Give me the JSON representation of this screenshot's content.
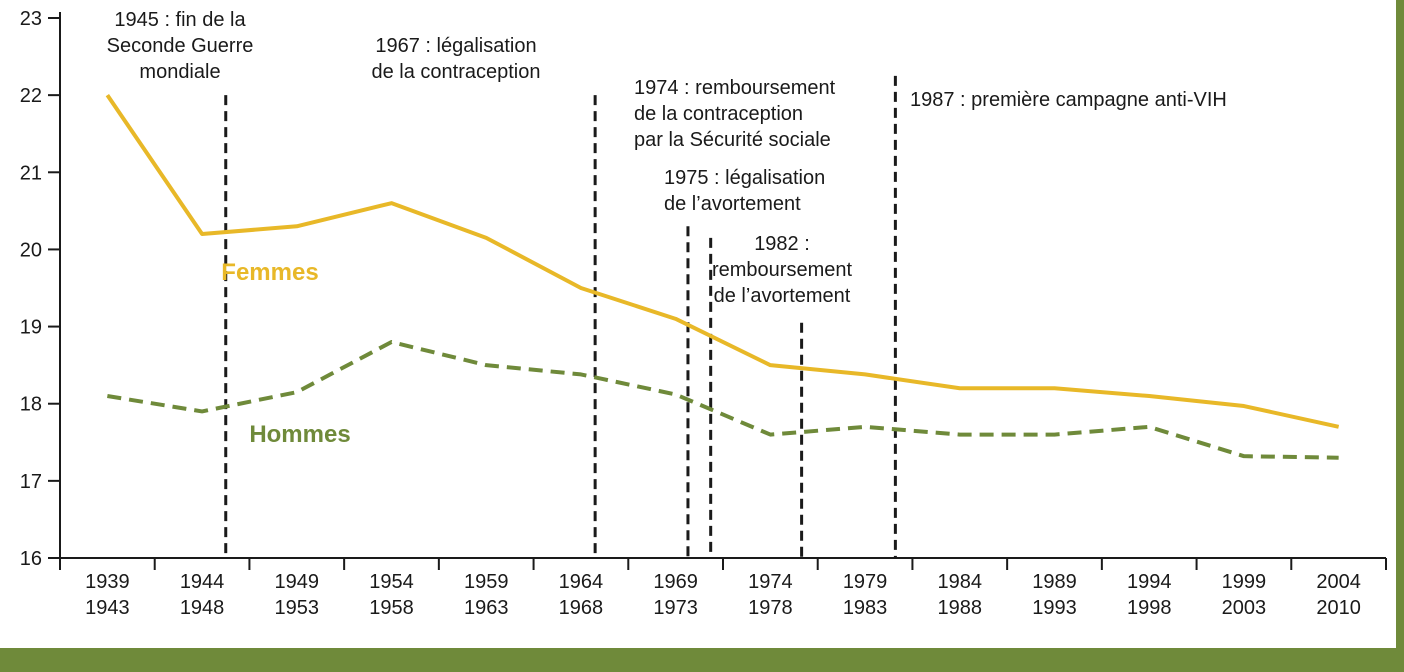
{
  "chart_data": {
    "type": "line",
    "title": "",
    "xlabel": "",
    "ylabel": "",
    "ylim": [
      16,
      23
    ],
    "y_ticks": [
      "16",
      "17",
      "18",
      "19",
      "20",
      "21",
      "22",
      "23"
    ],
    "categories": [
      [
        "1939",
        "1943"
      ],
      [
        "1944",
        "1948"
      ],
      [
        "1949",
        "1953"
      ],
      [
        "1954",
        "1958"
      ],
      [
        "1959",
        "1963"
      ],
      [
        "1964",
        "1968"
      ],
      [
        "1969",
        "1973"
      ],
      [
        "1974",
        "1978"
      ],
      [
        "1979",
        "1983"
      ],
      [
        "1984",
        "1988"
      ],
      [
        "1989",
        "1993"
      ],
      [
        "1994",
        "1998"
      ],
      [
        "1999",
        "2003"
      ],
      [
        "2004",
        "2010"
      ]
    ],
    "grid": false,
    "series": [
      {
        "name": "Femmes",
        "color": "#e8b828",
        "style": "solid",
        "values": [
          22.0,
          20.2,
          20.3,
          20.6,
          20.15,
          19.5,
          19.1,
          18.5,
          18.38,
          18.2,
          18.2,
          18.1,
          17.97,
          17.7
        ]
      },
      {
        "name": "Hommes",
        "color": "#6f8a3a",
        "style": "dashed",
        "values": [
          18.1,
          17.9,
          18.15,
          18.8,
          18.5,
          18.38,
          18.12,
          17.6,
          17.7,
          17.6,
          17.6,
          17.7,
          17.32,
          17.3
        ]
      }
    ],
    "events": [
      {
        "position": 1.75,
        "top_value": 22.0,
        "lines": [
          "1945 : fin de la",
          "Seconde Guerre",
          "mondiale"
        ]
      },
      {
        "position": 5.65,
        "top_value": 22.0,
        "lines": [
          "1967 : légalisation",
          "de la contraception"
        ]
      },
      {
        "position": 6.63,
        "top_value": 20.3,
        "lines": [
          "1974 : remboursement",
          "de la contraception",
          "par la Sécurité sociale"
        ]
      },
      {
        "position": 6.87,
        "top_value": 20.15,
        "lines": [
          "1975 : légalisation",
          "de l’avortement"
        ]
      },
      {
        "position": 7.83,
        "top_value": 19.05,
        "lines": [
          "1982 :",
          "remboursement",
          "de l’avortement"
        ]
      },
      {
        "position": 8.82,
        "top_value": 22.25,
        "lines": [
          "1987 : première campagne anti-VIH"
        ]
      }
    ]
  }
}
